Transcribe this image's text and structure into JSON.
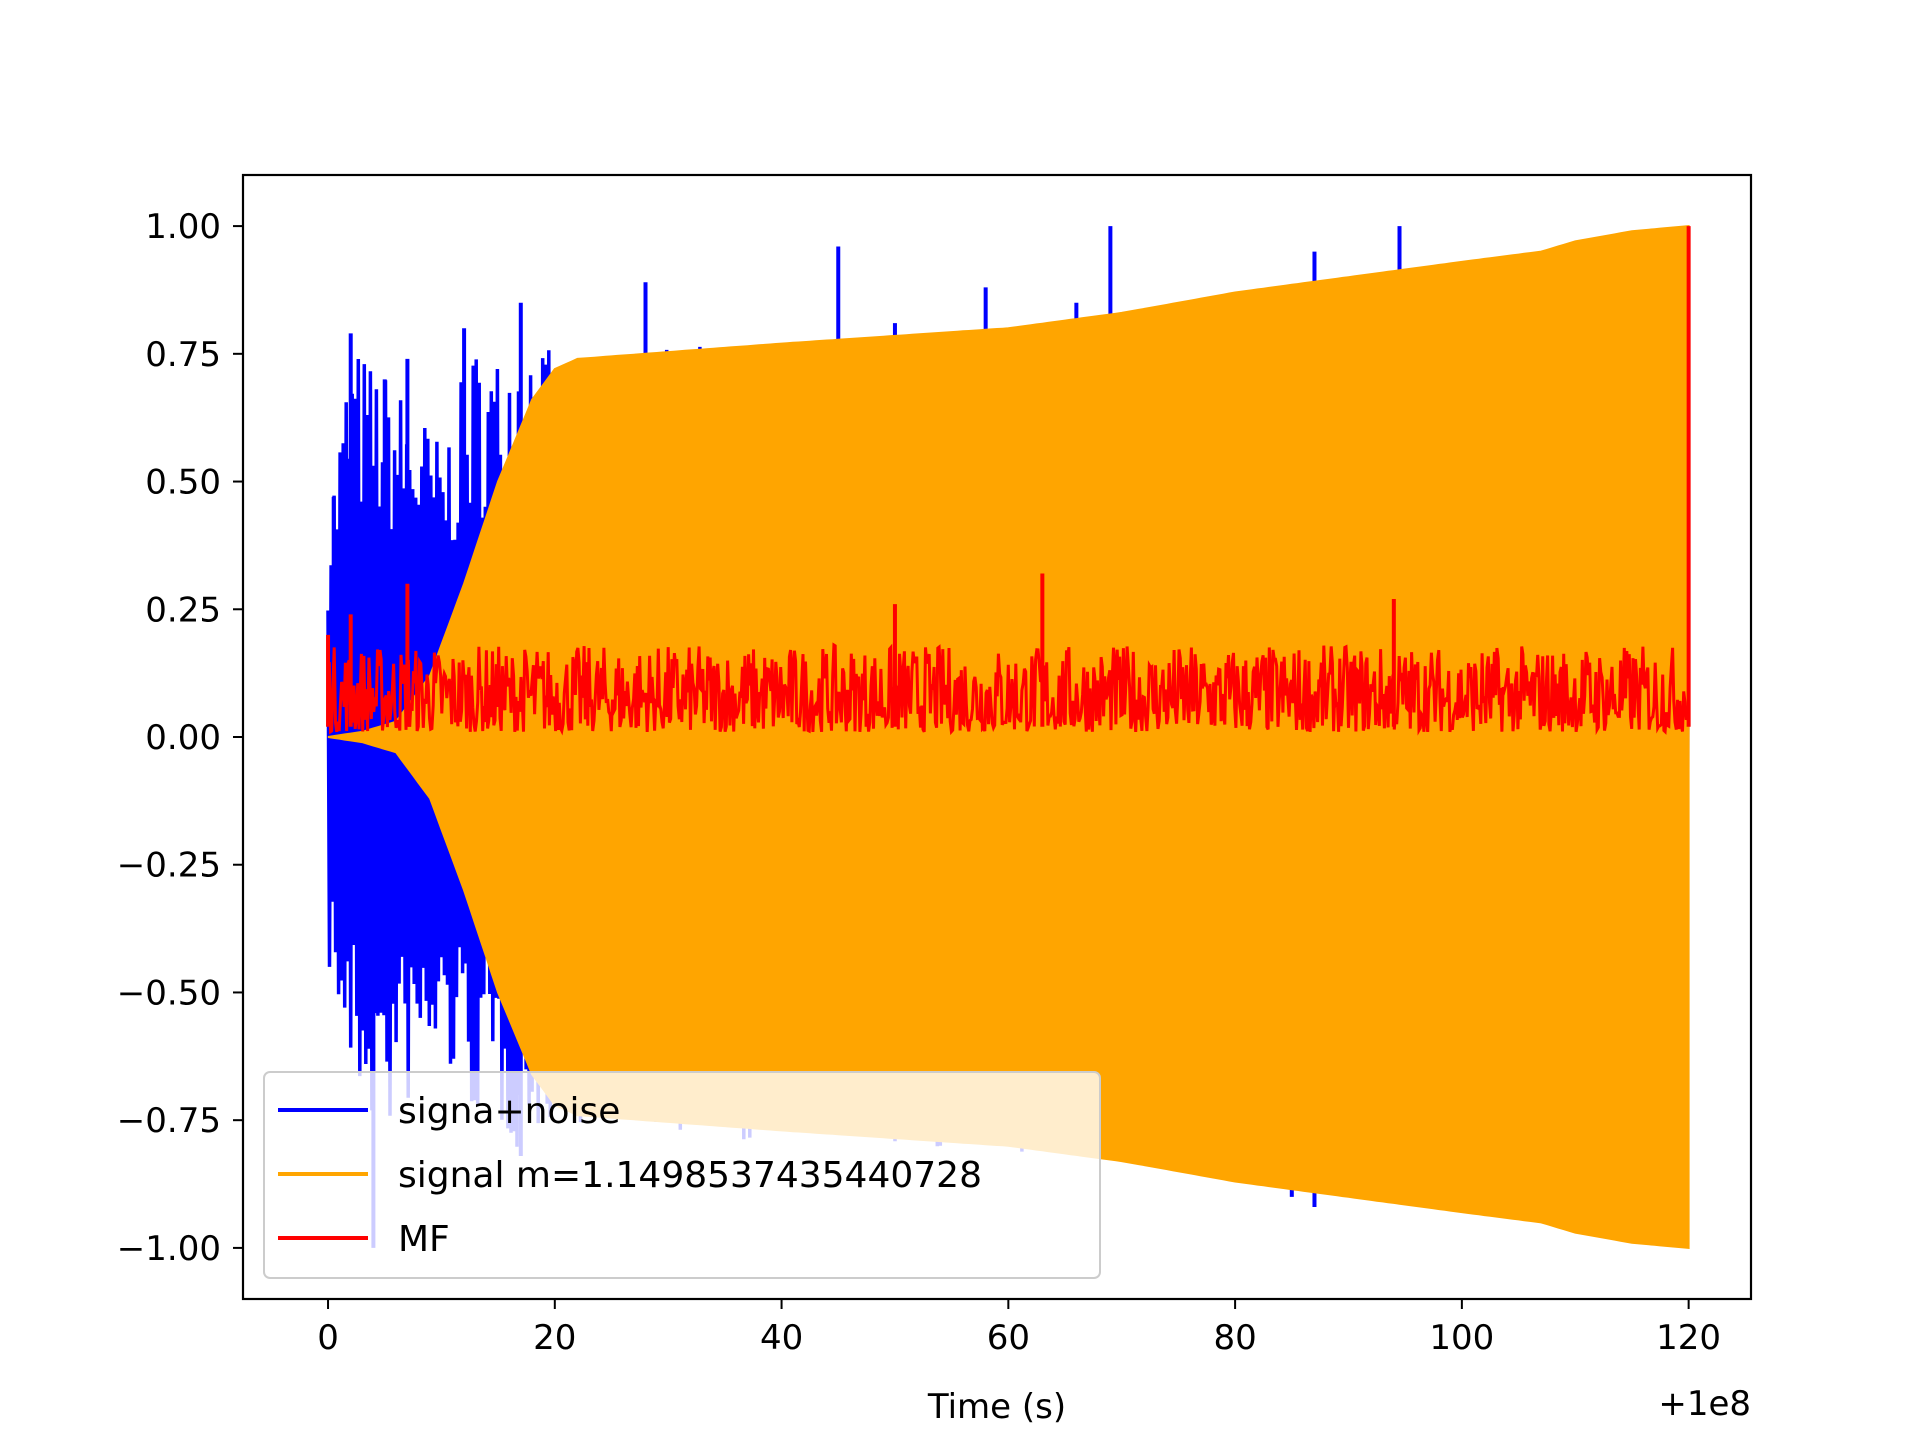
{
  "chart_data": {
    "type": "line",
    "title": "",
    "xlabel": "Time (s)",
    "ylabel": "",
    "x_offset_label": "+1e8",
    "xlim": [
      -7.5,
      125.5
    ],
    "ylim": [
      -1.1,
      1.1
    ],
    "x_ticks": [
      0,
      20,
      40,
      60,
      80,
      100,
      120
    ],
    "y_ticks": [
      1.0,
      0.75,
      0.5,
      0.25,
      0.0,
      -0.25,
      -0.5,
      -0.75,
      -1.0
    ],
    "x_tick_labels": [
      "0",
      "20",
      "40",
      "60",
      "80",
      "100",
      "120"
    ],
    "y_tick_labels": [
      "1.00",
      "0.75",
      "0.50",
      "0.25",
      "0.00",
      "−0.25",
      "−0.50",
      "−0.75",
      "−1.00"
    ],
    "grid": false,
    "legend_position": "lower-left",
    "series": [
      {
        "name": "signa+noise",
        "color": "#0000ff",
        "envelope_upper": [
          [
            0,
            0.45
          ],
          [
            2,
            0.78
          ],
          [
            5,
            0.72
          ],
          [
            8,
            0.65
          ],
          [
            10,
            0.58
          ],
          [
            13,
            0.78
          ],
          [
            15,
            0.76
          ],
          [
            17,
            0.85
          ],
          [
            20,
            0.74
          ],
          [
            30,
            0.76
          ],
          [
            40,
            0.78
          ],
          [
            60,
            0.8
          ],
          [
            80,
            0.84
          ],
          [
            100,
            0.9
          ],
          [
            120,
            0.96
          ]
        ],
        "envelope_lower": [
          [
            0,
            -0.45
          ],
          [
            2,
            -0.7
          ],
          [
            5,
            -0.8
          ],
          [
            8,
            -0.7
          ],
          [
            10,
            -0.65
          ],
          [
            13,
            -0.75
          ],
          [
            15,
            -0.78
          ],
          [
            17,
            -0.82
          ],
          [
            20,
            -0.75
          ],
          [
            40,
            -0.8
          ],
          [
            60,
            -0.82
          ],
          [
            80,
            -0.86
          ],
          [
            100,
            -0.92
          ],
          [
            120,
            -0.98
          ]
        ],
        "spikes": [
          [
            0.5,
            0.47
          ],
          [
            2,
            0.79
          ],
          [
            5,
            0.7
          ],
          [
            7,
            0.74
          ],
          [
            12,
            0.8
          ],
          [
            17,
            0.85
          ],
          [
            28,
            0.89
          ],
          [
            45,
            0.96
          ],
          [
            50,
            0.81
          ],
          [
            58,
            0.88
          ],
          [
            66,
            0.85
          ],
          [
            69,
            1.0
          ],
          [
            87,
            0.95
          ],
          [
            94.5,
            1.0
          ],
          [
            4,
            -1.0
          ],
          [
            17,
            -0.82
          ],
          [
            85,
            -0.9
          ],
          [
            87,
            -0.92
          ],
          [
            108,
            -0.94
          ]
        ]
      },
      {
        "name": "signal m=1.1498537435440728",
        "color": "#ffa500",
        "envelope_upper": [
          [
            0,
            0.0
          ],
          [
            3,
            0.01
          ],
          [
            6,
            0.03
          ],
          [
            9,
            0.12
          ],
          [
            12,
            0.3
          ],
          [
            15,
            0.5
          ],
          [
            18,
            0.66
          ],
          [
            20,
            0.72
          ],
          [
            22,
            0.74
          ],
          [
            40,
            0.77
          ],
          [
            60,
            0.8
          ],
          [
            70,
            0.83
          ],
          [
            80,
            0.87
          ],
          [
            90,
            0.9
          ],
          [
            100,
            0.93
          ],
          [
            107,
            0.95
          ],
          [
            110,
            0.97
          ],
          [
            115,
            0.99
          ],
          [
            120,
            1.0
          ]
        ],
        "envelope_lower": [
          [
            0,
            0.0
          ],
          [
            3,
            -0.01
          ],
          [
            6,
            -0.03
          ],
          [
            9,
            -0.12
          ],
          [
            12,
            -0.3
          ],
          [
            15,
            -0.5
          ],
          [
            18,
            -0.66
          ],
          [
            20,
            -0.72
          ],
          [
            22,
            -0.74
          ],
          [
            40,
            -0.77
          ],
          [
            60,
            -0.8
          ],
          [
            70,
            -0.83
          ],
          [
            80,
            -0.87
          ],
          [
            90,
            -0.9
          ],
          [
            100,
            -0.93
          ],
          [
            107,
            -0.95
          ],
          [
            110,
            -0.97
          ],
          [
            115,
            -0.99
          ],
          [
            120,
            -1.0
          ]
        ]
      },
      {
        "name": "MF",
        "color": "#ff0000",
        "baseline": [
          0.0,
          0.2
        ],
        "spikes": [
          [
            0,
            0.2
          ],
          [
            2,
            0.24
          ],
          [
            7,
            0.3
          ],
          [
            50,
            0.26
          ],
          [
            63,
            0.32
          ],
          [
            94,
            0.27
          ],
          [
            120,
            1.0
          ]
        ]
      }
    ]
  }
}
